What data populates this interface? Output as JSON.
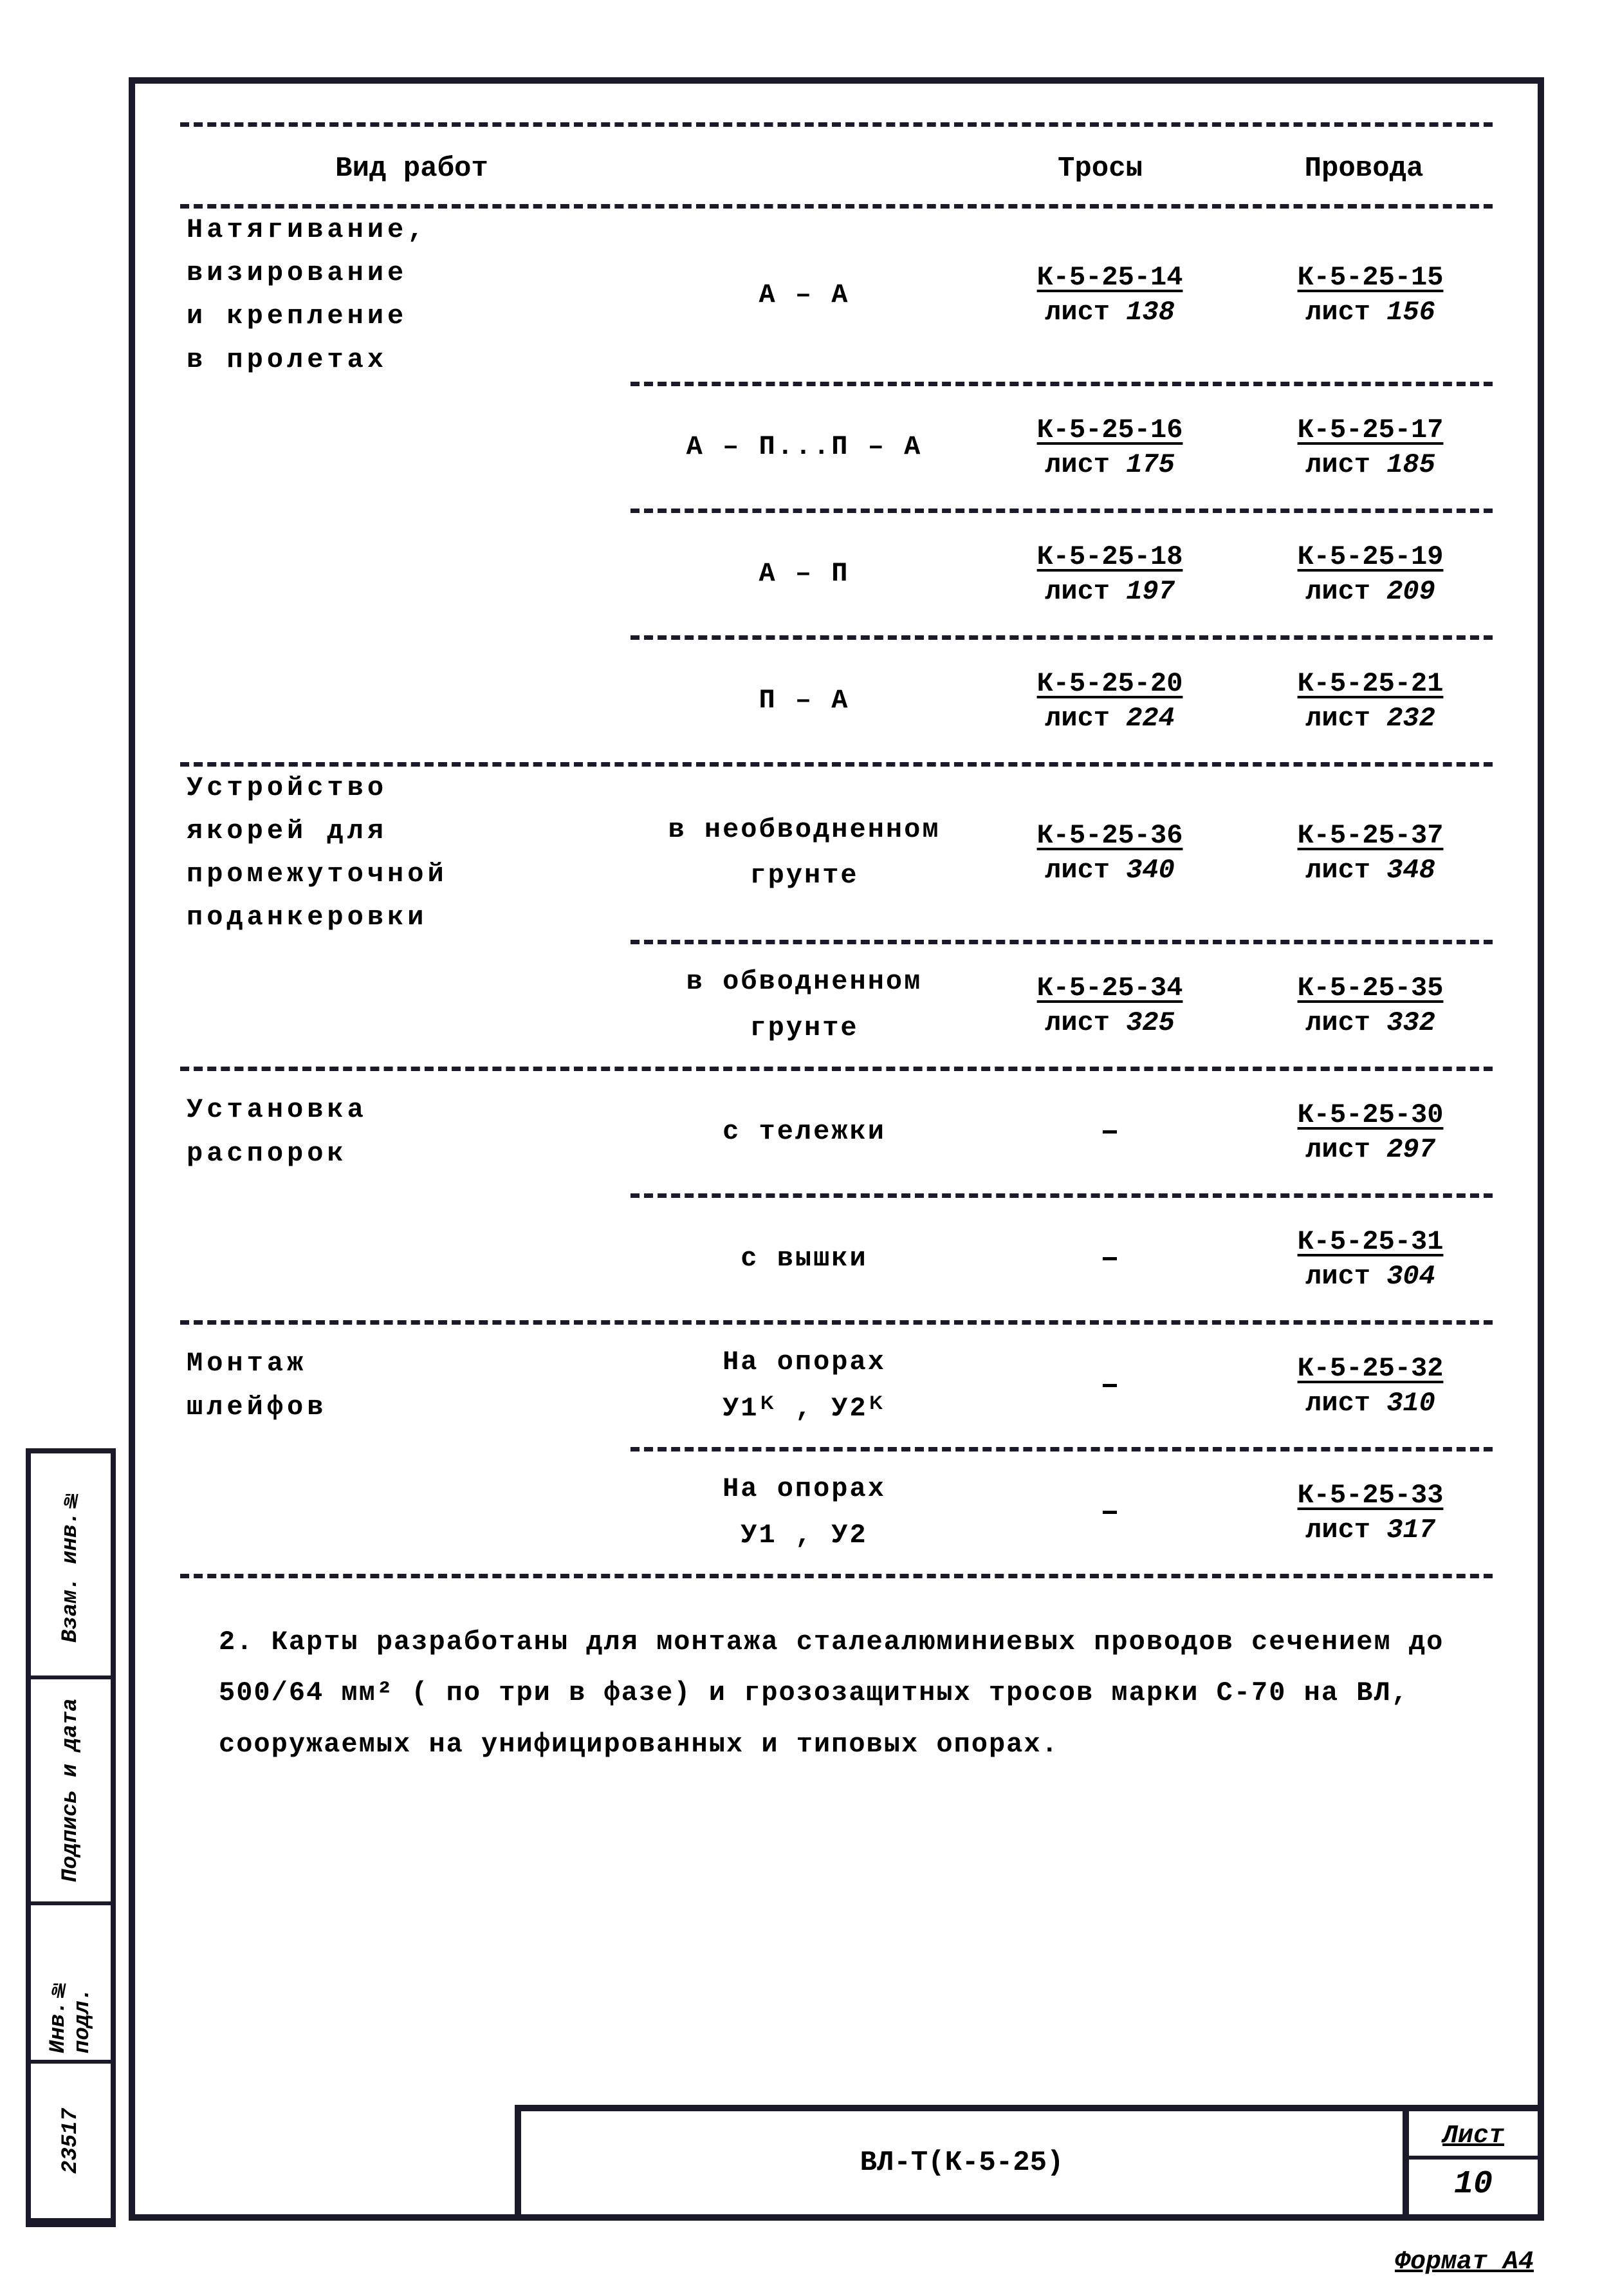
{
  "colors": {
    "ink": "#1a1a2a",
    "paper": "#ffffff"
  },
  "typography": {
    "font_family": "Courier New, monospace",
    "body_size_pt": 42,
    "title_size_pt": 44
  },
  "header": {
    "col1": "Вид работ",
    "col3": "Тросы",
    "col4": "Провода"
  },
  "sections": [
    {
      "label": "Натягивание,\nвизирование\nи крепление\nв пролетах",
      "rows": [
        {
          "c2": "А – А",
          "c3_code": "К-5-25-14",
          "c3_sheet": "лист 138",
          "c4_code": "К-5-25-15",
          "c4_sheet": "лист 156"
        },
        {
          "c2": "А – П...П – А",
          "c3_code": "К-5-25-16",
          "c3_sheet": "лист 175",
          "c4_code": "К-5-25-17",
          "c4_sheet": "лист 185"
        },
        {
          "c2": "А – П",
          "c3_code": "К-5-25-18",
          "c3_sheet": "лист 197",
          "c4_code": "К-5-25-19",
          "c4_sheet": "лист 209"
        },
        {
          "c2": "П – А",
          "c3_code": "К-5-25-20",
          "c3_sheet": "лист 224",
          "c4_code": "К-5-25-21",
          "c4_sheet": "лист 232"
        }
      ]
    },
    {
      "label": "Устройство\nякорей для\nпромежуточной\nподанкеровки",
      "rows": [
        {
          "c2": "в необводненном\nгрунте",
          "c3_code": "К-5-25-36",
          "c3_sheet": "лист 340",
          "c4_code": "К-5-25-37",
          "c4_sheet": "лист 348"
        },
        {
          "c2": "в обводненном\nгрунте",
          "c3_code": "К-5-25-34",
          "c3_sheet": "лист 325",
          "c4_code": "К-5-25-35",
          "c4_sheet": "лист 332"
        }
      ]
    },
    {
      "label": "Установка\nраспорок",
      "rows": [
        {
          "c2": "с тележки",
          "c3_dash": "–",
          "c4_code": "К-5-25-30",
          "c4_sheet": "лист 297"
        },
        {
          "c2": "с вышки",
          "c3_dash": "–",
          "c4_code": "К-5-25-31",
          "c4_sheet": "лист 304"
        }
      ]
    },
    {
      "label": "Монтаж\nшлейфов",
      "rows": [
        {
          "c2": "На опорах\nУ1ᴷ , У2ᴷ",
          "c3_dash": "–",
          "c4_code": "К-5-25-32",
          "c4_sheet": "лист 310"
        },
        {
          "c2": "На опорах\nУ1 , У2",
          "c3_dash": "–",
          "c4_code": "К-5-25-33",
          "c4_sheet": "лист 317"
        }
      ]
    }
  ],
  "note": "2. Карты разработаны для монтажа сталеалюминиевых проводов сечением до 500/64 мм² ( по три в фазе) и грозозащитных тросов марки С-70 на ВЛ, сооружаемых на унифицированных и типовых опорах.",
  "title_block": {
    "doc": "ВЛ-Т(К-5-25)",
    "sheet_label": "Лист",
    "sheet_num": "10"
  },
  "side": {
    "cell1": "Инв.№ подл.",
    "cell2": "23517",
    "cell3": "Подпись и дата",
    "cell4": "Взам. инв.№"
  },
  "format": "Формат А4"
}
